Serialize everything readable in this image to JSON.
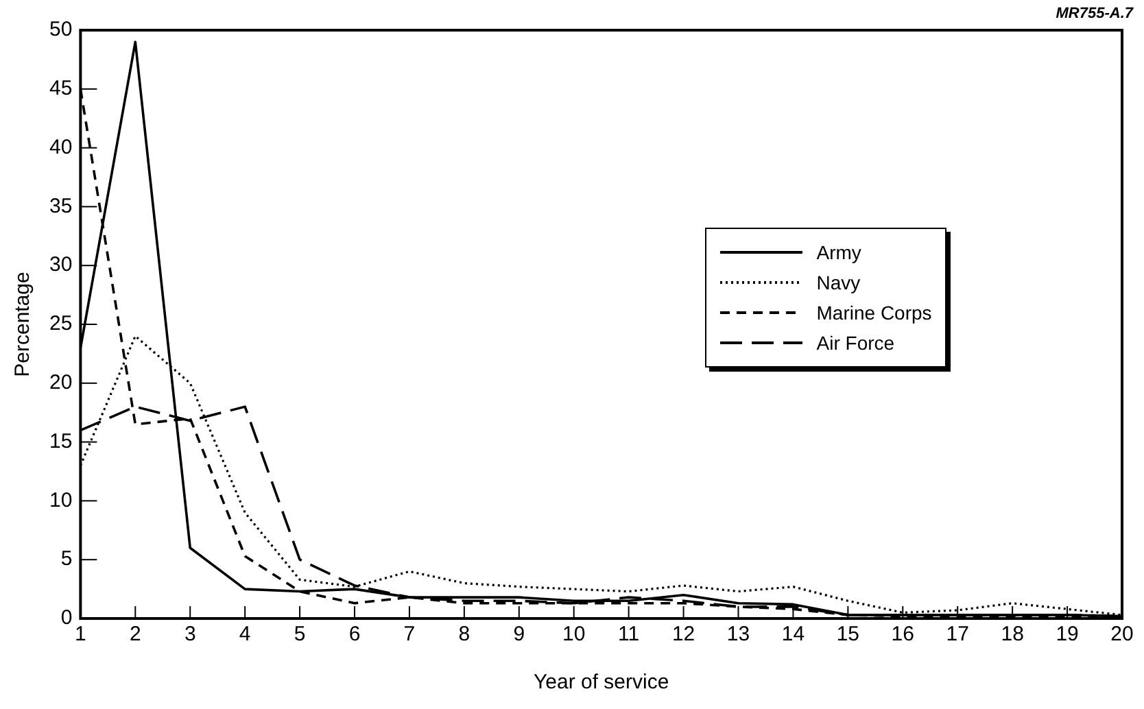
{
  "chart_data": {
    "type": "line",
    "xlabel": "Year of service",
    "ylabel": "Percentage",
    "annotations": [
      "MR755-A.7"
    ],
    "x": [
      1,
      2,
      3,
      4,
      5,
      6,
      7,
      8,
      9,
      10,
      11,
      12,
      13,
      14,
      15,
      16,
      17,
      18,
      19,
      20
    ],
    "xlim": [
      1,
      20
    ],
    "xticks": [
      1,
      2,
      3,
      4,
      5,
      6,
      7,
      8,
      9,
      10,
      11,
      12,
      13,
      14,
      15,
      16,
      17,
      18,
      19,
      20
    ],
    "ylim": [
      0,
      50
    ],
    "yticks": [
      0,
      5,
      10,
      15,
      20,
      25,
      30,
      35,
      40,
      45,
      50
    ],
    "grid": false,
    "legend": "right",
    "marker": "none",
    "series": [
      {
        "name": "Army",
        "color": "#000000",
        "line_style": "solid",
        "values": [
          23,
          49,
          6,
          2.5,
          2.3,
          2.5,
          1.8,
          1.8,
          1.8,
          1.5,
          1.5,
          2,
          1.3,
          1.2,
          0.3,
          0.3,
          0.3,
          0.3,
          0.3,
          0.2
        ]
      },
      {
        "name": "Navy",
        "color": "#000000",
        "line_style": "dotted",
        "values": [
          13,
          24,
          20,
          9,
          3.3,
          2.7,
          4,
          3,
          2.7,
          2.5,
          2.3,
          2.8,
          2.3,
          2.7,
          1.5,
          0.5,
          0.7,
          1.3,
          0.8,
          0.3
        ]
      },
      {
        "name": "Marine Corps",
        "color": "#000000",
        "line_style": "dashed",
        "values": [
          45,
          16.5,
          17,
          5.3,
          2.3,
          1.3,
          1.8,
          1.3,
          1.3,
          1.3,
          1.3,
          1.3,
          1,
          0.8,
          0.3,
          0.2,
          0.2,
          0.2,
          0.2,
          0.1
        ]
      },
      {
        "name": "Air Force",
        "color": "#000000",
        "line_style": "dashed",
        "values": [
          16,
          18,
          16.8,
          18,
          5,
          2.8,
          1.8,
          1.5,
          1.5,
          1.3,
          1.8,
          1.5,
          1,
          1,
          0.3,
          0.3,
          0.3,
          0.3,
          0.3,
          0.2
        ]
      }
    ]
  }
}
